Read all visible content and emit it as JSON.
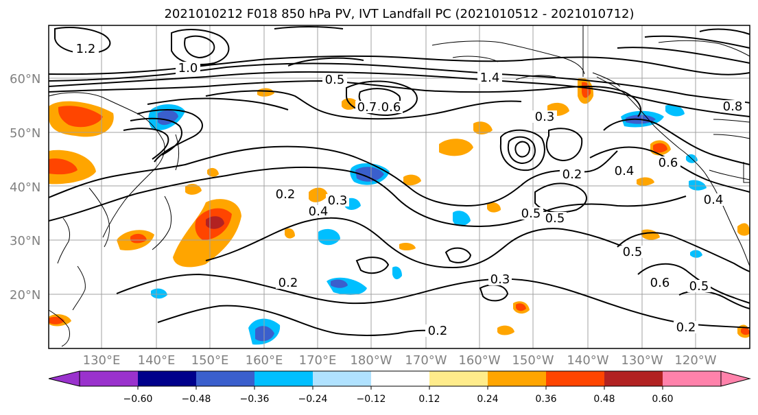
{
  "title": "2021010212 F018 850 hPa PV, IVT Landfall PC (2021010512 - 2021010712)",
  "map": {
    "lat_labels": [
      "60°N",
      "50°N",
      "40°N",
      "30°N",
      "20°N"
    ],
    "lon_labels": [
      "130°E",
      "140°E",
      "150°E",
      "160°E",
      "170°E",
      "180°W",
      "170°W",
      "160°W",
      "150°W",
      "140°W",
      "130°W",
      "120°W"
    ],
    "contour_labels": [
      "1.2",
      "1.0",
      "1.4",
      "0.5",
      "0.7",
      "0.6",
      "0.8",
      "0.3",
      "0.2",
      "0.4",
      "0.6",
      "0.5",
      "0.2",
      "0.4",
      "0.3",
      "0.2",
      "0.3",
      "0.5",
      "0.6",
      "0.5",
      "0.2",
      "0.2",
      "0.5",
      "0.4"
    ]
  },
  "colorbar": {
    "ticks": [
      "−0.60",
      "−0.48",
      "−0.36",
      "−0.24",
      "−0.12",
      "0.12",
      "0.24",
      "0.36",
      "0.48",
      "0.60"
    ],
    "colors": [
      "#9a32cd",
      "#00008b",
      "#3a5fcd",
      "#00bfff",
      "#b0e2ff",
      "#ffffff",
      "#ffec8b",
      "#ffa500",
      "#ff4500",
      "#b22222",
      "#ff82ab"
    ],
    "extend": "both"
  }
}
